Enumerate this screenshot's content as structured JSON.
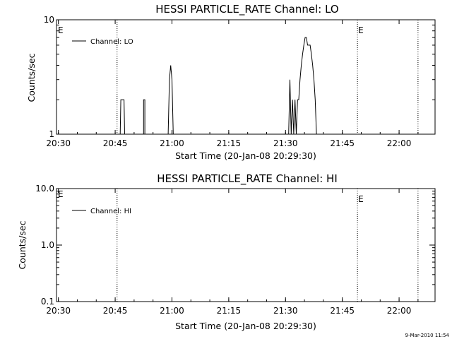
{
  "chart_data": [
    {
      "type": "line",
      "title": "HESSI PARTICLE_RATE Channel: LO",
      "xlabel": "Start Time (20-Jan-08 20:29:30)",
      "ylabel": "Counts/sec",
      "yscale": "log",
      "ylim": [
        1,
        10
      ],
      "ytick_labels": [
        "1",
        "10"
      ],
      "xlim": [
        "20:29:30",
        "22:09:30"
      ],
      "xtick_labels": [
        "20:30",
        "20:45",
        "21:00",
        "21:15",
        "21:30",
        "21:45",
        "22:00"
      ],
      "grid": false,
      "legend": {
        "position": "top-left",
        "entries": [
          "Channel: LO"
        ]
      },
      "vertical_markers": [
        {
          "time": "20:45:30",
          "style": "dotted",
          "label": ""
        },
        {
          "time": "21:49:00",
          "style": "dotted",
          "label": "E"
        },
        {
          "time": "22:05:00",
          "style": "dotted",
          "label": ""
        }
      ],
      "corner_label": "E",
      "series": [
        {
          "name": "Channel: LO",
          "x": [
            "20:46:20",
            "20:46:30",
            "20:47:20",
            "20:47:30",
            "20:52:30",
            "20:52:30",
            "20:52:50",
            "20:52:50",
            "20:59:00",
            "20:59:20",
            "20:59:40",
            "21:00:00",
            "21:00:20",
            "21:00:40",
            "21:30:50",
            "21:31:10",
            "21:31:30",
            "21:31:50",
            "21:32:10",
            "21:32:30",
            "21:32:50",
            "21:33:10",
            "21:33:30",
            "21:33:50",
            "21:34:10",
            "21:34:30",
            "21:34:50",
            "21:35:10",
            "21:35:30",
            "21:35:50",
            "21:36:10",
            "21:36:30",
            "21:36:50",
            "21:37:10",
            "21:37:30",
            "21:37:50",
            "21:38:10",
            "21:38:30",
            "21:38:50",
            "21:39:10",
            "21:39:30"
          ],
          "y": [
            1,
            2,
            2,
            1,
            1,
            2,
            2,
            1,
            1,
            3,
            4,
            3,
            1,
            1,
            1,
            3,
            1,
            2,
            1,
            2,
            1,
            2,
            2,
            3,
            4,
            5,
            6,
            7,
            7,
            6,
            6,
            6,
            5,
            4,
            3,
            2,
            1,
            1,
            1,
            1,
            1
          ]
        }
      ]
    },
    {
      "type": "line",
      "title": "HESSI PARTICLE_RATE Channel: HI",
      "xlabel": "Start Time (20-Jan-08 20:29:30)",
      "ylabel": "Counts/sec",
      "yscale": "log",
      "ylim": [
        0.1,
        10
      ],
      "ytick_labels": [
        "0.1",
        "1.0",
        "10.0"
      ],
      "xlim": [
        "20:29:30",
        "22:09:30"
      ],
      "xtick_labels": [
        "20:30",
        "20:45",
        "21:00",
        "21:15",
        "21:30",
        "21:45",
        "22:00"
      ],
      "grid": false,
      "legend": {
        "position": "top-left",
        "entries": [
          "Channel: HI"
        ]
      },
      "vertical_markers": [
        {
          "time": "20:45:30",
          "style": "dotted",
          "label": ""
        },
        {
          "time": "21:49:00",
          "style": "dotted",
          "label": "E"
        },
        {
          "time": "22:05:00",
          "style": "dotted",
          "label": ""
        }
      ],
      "corner_label": "E",
      "series": [
        {
          "name": "Channel: HI",
          "x": [],
          "y": []
        }
      ]
    }
  ],
  "footer": {
    "timestamp": "9-Mar-2010 11:54"
  }
}
